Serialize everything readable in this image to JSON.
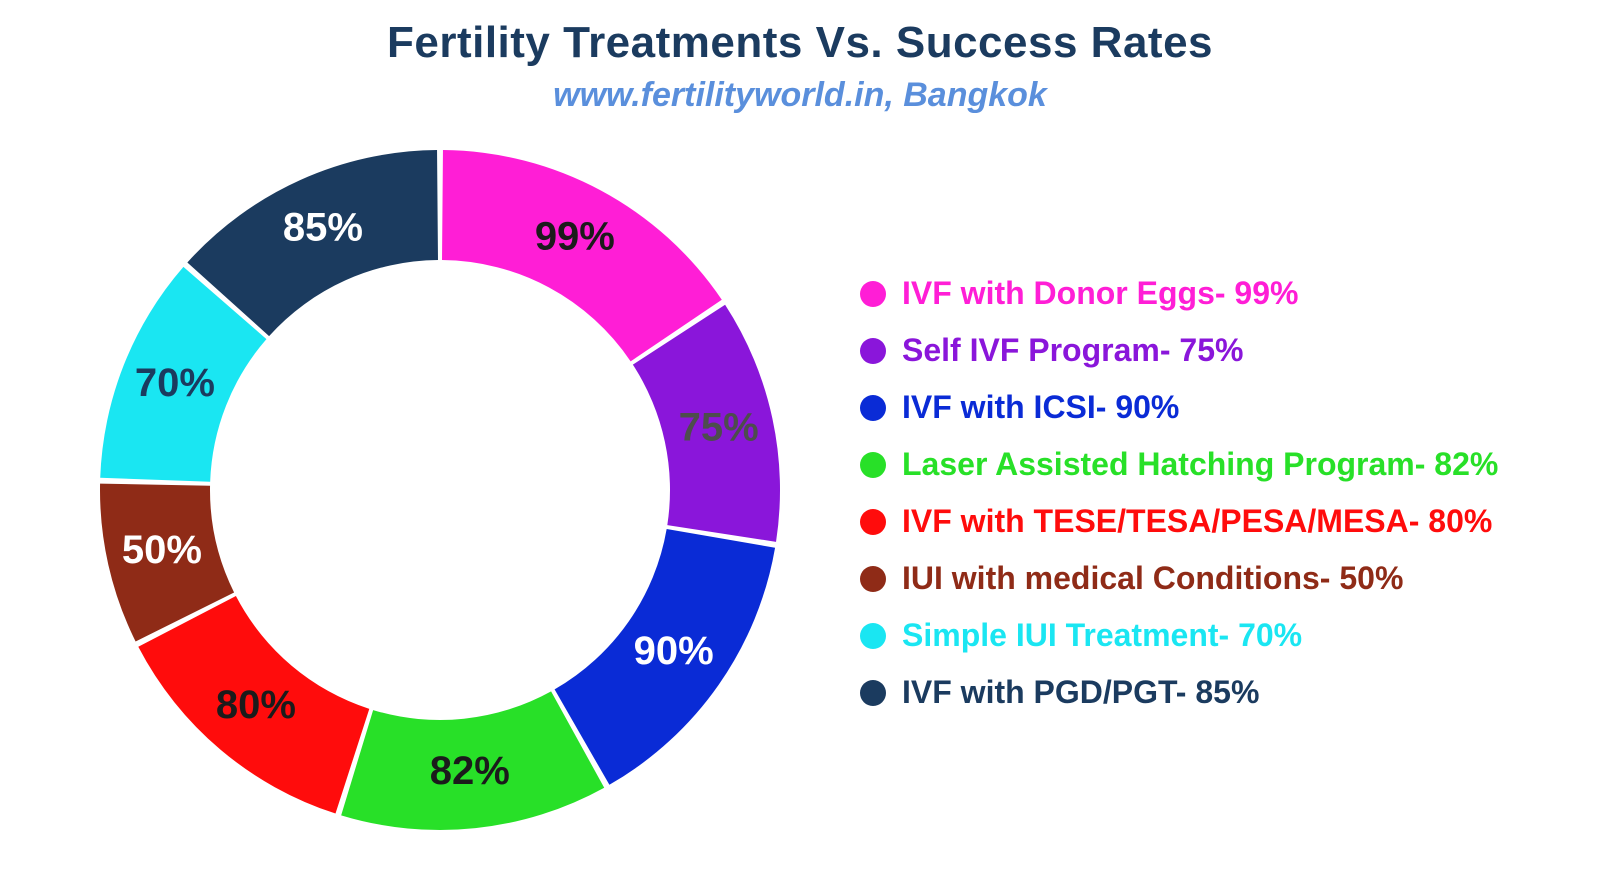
{
  "title": {
    "text": "Fertility Treatments Vs. Success Rates",
    "color": "#1b3b5f",
    "fontsize": 44
  },
  "subtitle": {
    "text": "www.fertilityworld.in, Bangkok",
    "color": "#5a8fdc",
    "fontsize": 34
  },
  "chart": {
    "type": "donut",
    "background_color": "#ffffff",
    "outer_radius": 340,
    "inner_radius": 230,
    "gap_deg": 1.0,
    "start_angle_deg": 0,
    "label_radius": 285,
    "label_fontsize": 40,
    "slices": [
      {
        "label": "IVF with Donor Eggs",
        "value": 99,
        "color": "#ff1ed6",
        "label_color": "#1b1b1b"
      },
      {
        "label": "Self IVF Program",
        "value": 75,
        "color": "#8a16da",
        "label_color": "#4d4d4d"
      },
      {
        "label": "IVF with ICSI",
        "value": 90,
        "color": "#0a2bd6",
        "label_color": "#ffffff"
      },
      {
        "label": "Laser Assisted Hatching Program",
        "value": 82,
        "color": "#28e028",
        "label_color": "#1b1b1b"
      },
      {
        "label": "IVF with TESE/TESA/PESA/MESA",
        "value": 80,
        "color": "#ff0c0c",
        "label_color": "#1b1b1b"
      },
      {
        "label": "IUI with medical Conditions",
        "value": 50,
        "color": "#8f2b17",
        "label_color": "#ffffff"
      },
      {
        "label": "Simple IUI Treatment",
        "value": 70,
        "color": "#1ae6f2",
        "label_color": "#1b3b5f"
      },
      {
        "label": "IVF with PGD/PGT",
        "value": 85,
        "color": "#1b3b5f",
        "label_color": "#ffffff"
      }
    ]
  },
  "legend": {
    "fontsize": 32,
    "items": [
      {
        "text": "IVF with Donor Eggs- 99%",
        "color": "#ff1ed6"
      },
      {
        "text": "Self IVF Program- 75%",
        "color": "#8a16da"
      },
      {
        "text": "IVF with ICSI- 90%",
        "color": "#0a2bd6"
      },
      {
        "text": "Laser Assisted Hatching Program- 82%",
        "color": "#28e028"
      },
      {
        "text": "IVF with TESE/TESA/PESA/MESA- 80%",
        "color": "#ff0c0c"
      },
      {
        "text": "IUI with medical Conditions- 50%",
        "color": "#8f2b17"
      },
      {
        "text": "Simple IUI Treatment- 70%",
        "color": "#1ae6f2"
      },
      {
        "text": "IVF with PGD/PGT- 85%",
        "color": "#1b3b5f"
      }
    ]
  }
}
